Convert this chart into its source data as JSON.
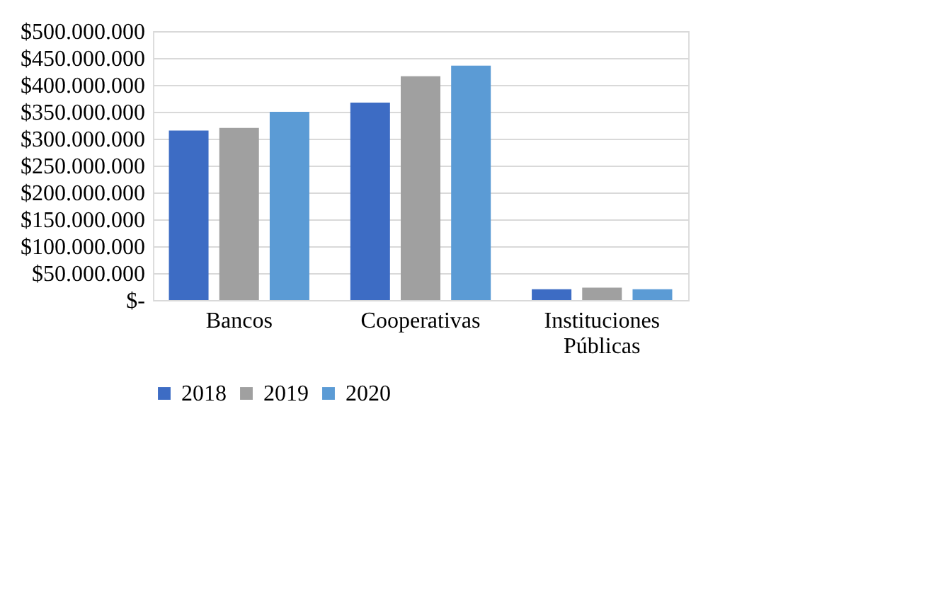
{
  "chart_data": {
    "type": "bar",
    "categories": [
      "Bancos",
      "Cooperativas",
      "Instituciones Públicas"
    ],
    "series": [
      {
        "name": "2018",
        "color": "#3d6cc4",
        "values": [
          315000000,
          367000000,
          20000000
        ]
      },
      {
        "name": "2019",
        "color": "#a0a0a0",
        "values": [
          320000000,
          416000000,
          23000000
        ]
      },
      {
        "name": "2020",
        "color": "#5b9bd5",
        "values": [
          350000000,
          436000000,
          20000000
        ]
      }
    ],
    "ylim": [
      0,
      500000000
    ],
    "yticks": [
      {
        "value": 0,
        "label": "$-"
      },
      {
        "value": 50000000,
        "label": "$50.000.000"
      },
      {
        "value": 100000000,
        "label": "$100.000.000"
      },
      {
        "value": 150000000,
        "label": "$150.000.000"
      },
      {
        "value": 200000000,
        "label": "$200.000.000"
      },
      {
        "value": 250000000,
        "label": "$250.000.000"
      },
      {
        "value": 300000000,
        "label": "$300.000.000"
      },
      {
        "value": 350000000,
        "label": "$350.000.000"
      },
      {
        "value": 400000000,
        "label": "$400.000.000"
      },
      {
        "value": 450000000,
        "label": "$450.000.000"
      },
      {
        "value": 500000000,
        "label": "$500.000.000"
      }
    ],
    "grid": "y",
    "legend": "bottom"
  }
}
